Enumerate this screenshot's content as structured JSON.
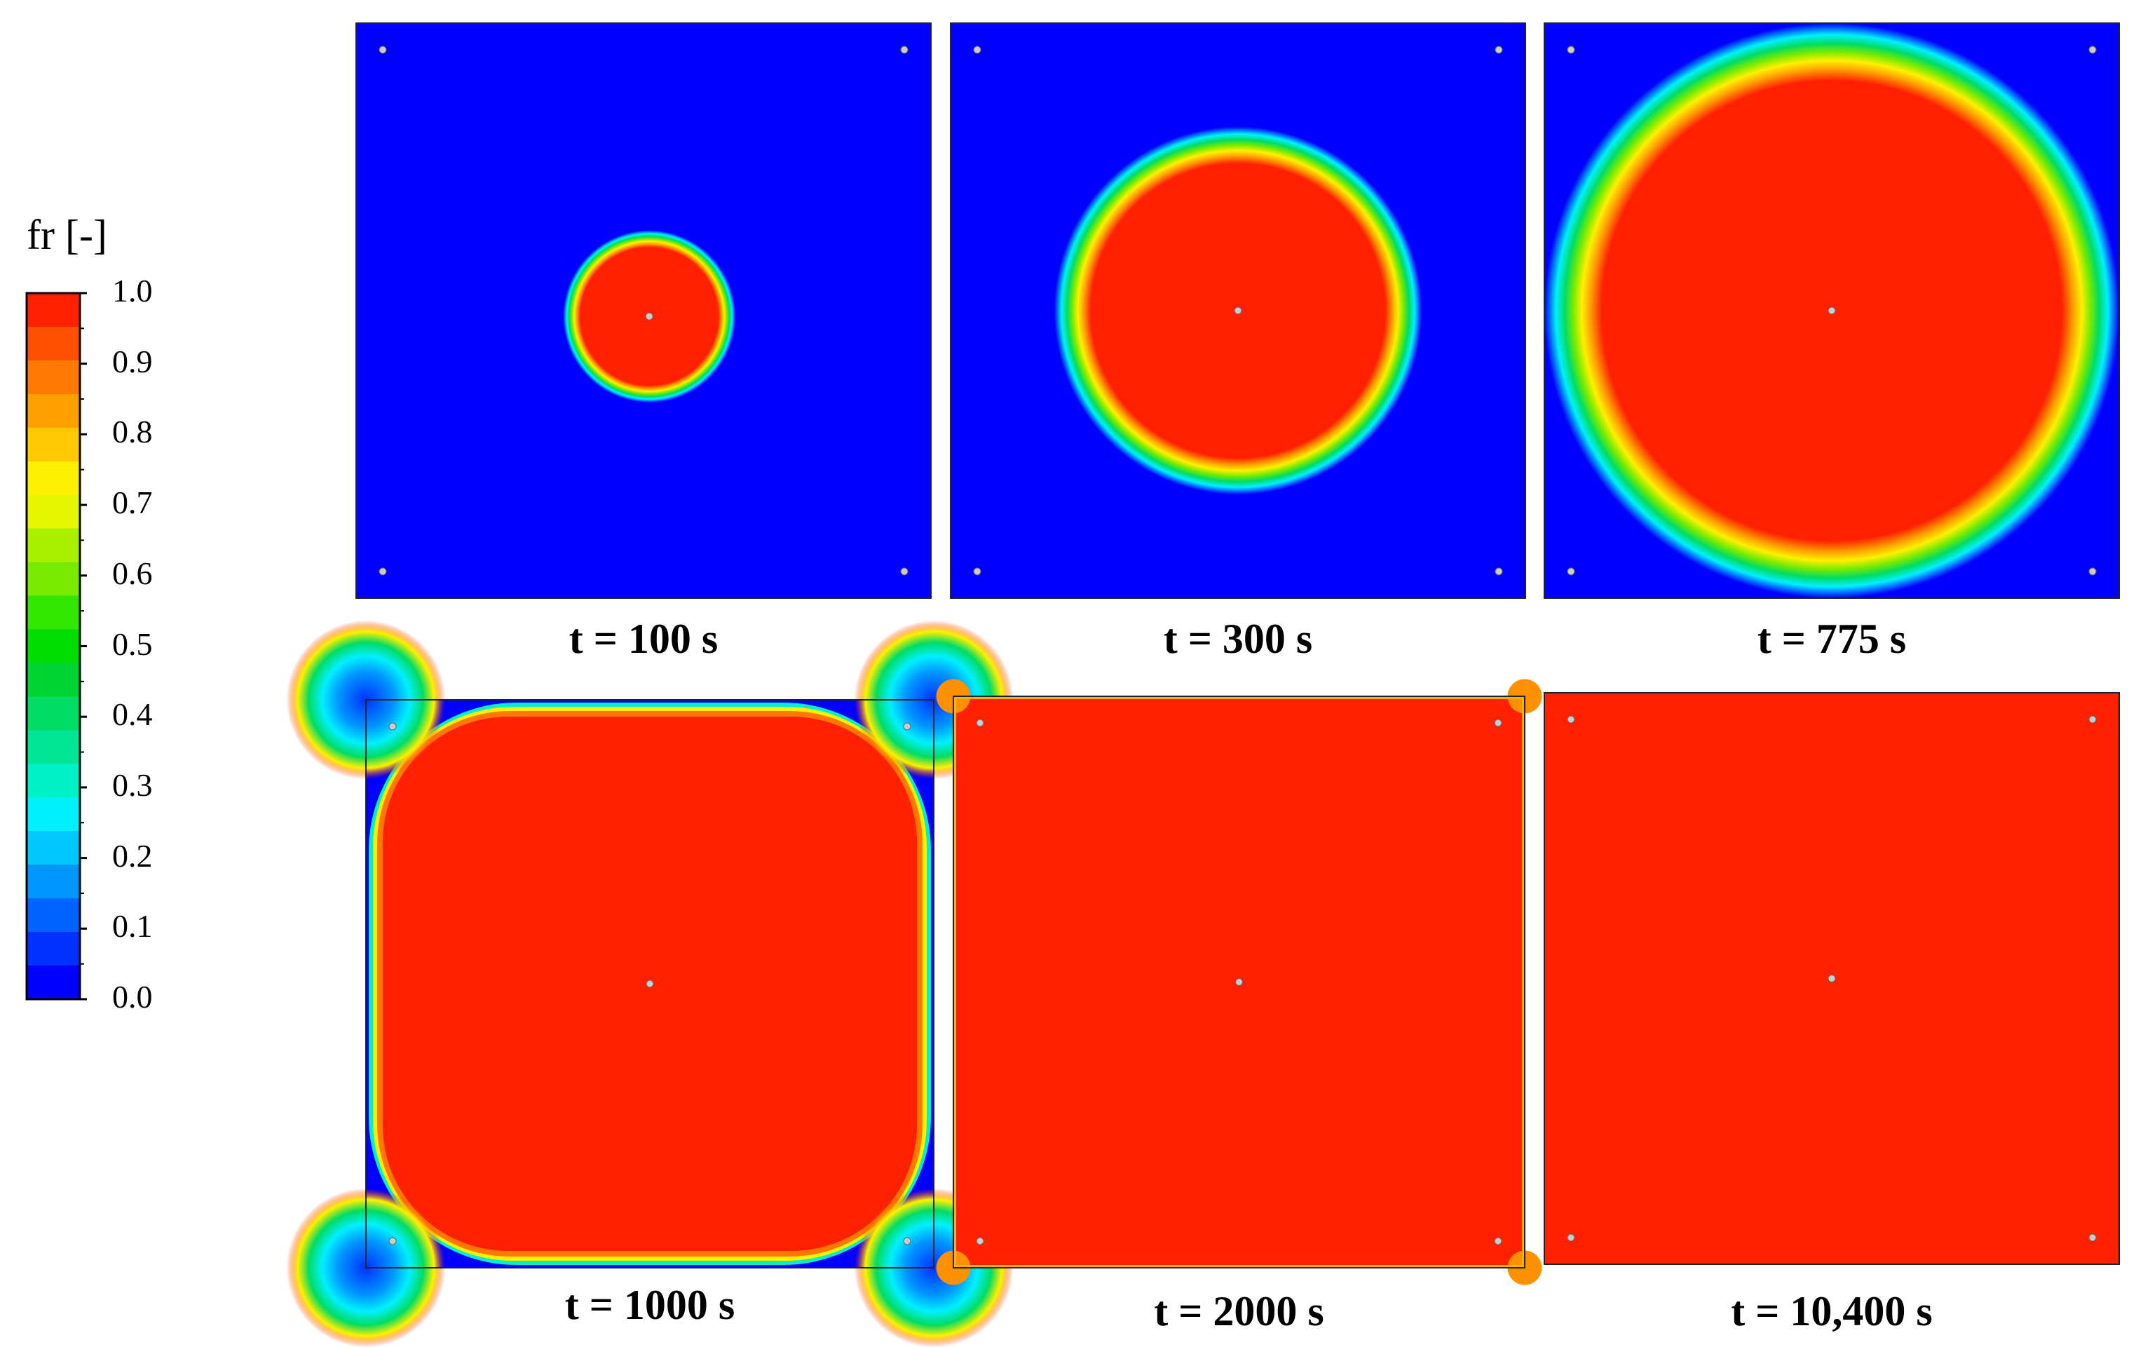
{
  "colorbar": {
    "title": "fr [-]",
    "min": 0.0,
    "max": 1.0,
    "tick_labels": [
      "1.0",
      "0.9",
      "0.8",
      "0.7",
      "0.6",
      "0.5",
      "0.4",
      "0.3",
      "0.2",
      "0.1",
      "0.0"
    ],
    "colors": [
      "#0000ff",
      "#0032ff",
      "#0064ff",
      "#0096ff",
      "#00c8ff",
      "#00f0ff",
      "#00f0c8",
      "#00e696",
      "#00dc64",
      "#00d232",
      "#00dc00",
      "#32e600",
      "#78eb00",
      "#aaf000",
      "#e6f500",
      "#fff000",
      "#ffc800",
      "#ffa000",
      "#ff7800",
      "#ff5000",
      "#ff2000"
    ]
  },
  "panels": [
    {
      "caption": "t = 100 s",
      "shape": "circle",
      "front_radius_fraction": 0.15
    },
    {
      "caption": "t = 300 s",
      "shape": "circle",
      "front_radius_fraction": 0.32
    },
    {
      "caption": "t = 775 s",
      "shape": "circle",
      "front_radius_fraction": 0.5
    },
    {
      "caption": "t = 1000 s",
      "shape": "rounded-square",
      "corner_radius_fraction": 0.26
    },
    {
      "caption": "t = 2000 s",
      "shape": "full",
      "corner_radius_fraction": 0.03
    },
    {
      "caption": "t = 10,400 s",
      "shape": "full",
      "corner_radius_fraction": 0.0
    }
  ],
  "colors": {
    "liquid": "#0000ff",
    "solid": "#ff2000",
    "marker": "#cccccc"
  }
}
